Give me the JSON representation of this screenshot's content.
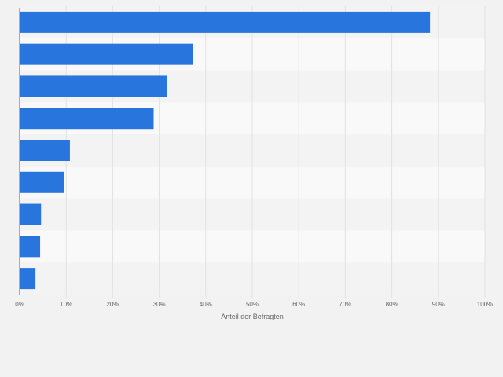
{
  "chart_data": {
    "type": "bar",
    "orientation": "horizontal",
    "categories": [
      "",
      "",
      "",
      "",
      "",
      "",
      "",
      "",
      ""
    ],
    "values": [
      88.2,
      37.2,
      31.7,
      28.8,
      10.8,
      9.5,
      4.6,
      4.4,
      3.4
    ],
    "title": "",
    "xlabel": "Anteil der Befragten",
    "ylabel": "",
    "xlim": [
      0,
      100
    ],
    "xticks": [
      0,
      10,
      20,
      30,
      40,
      50,
      60,
      70,
      80,
      90,
      100
    ],
    "xtick_labels": [
      "0%",
      "10%",
      "20%",
      "30%",
      "40%",
      "50%",
      "60%",
      "70%",
      "80%",
      "90%",
      "100%"
    ],
    "grid": true,
    "bar_color": "#2876dd"
  }
}
